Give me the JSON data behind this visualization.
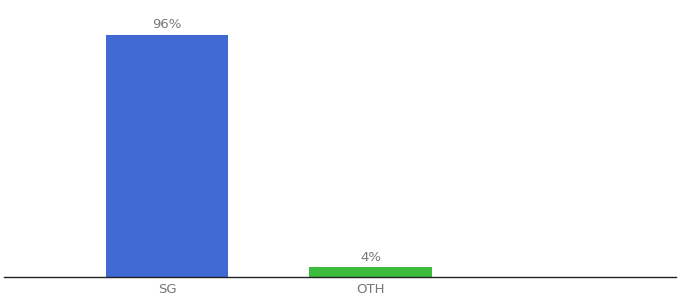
{
  "categories": [
    "SG",
    "OTH"
  ],
  "values": [
    96,
    4
  ],
  "bar_colors": [
    "#4169d4",
    "#3dbb3d"
  ],
  "label_texts": [
    "96%",
    "4%"
  ],
  "background_color": "#ffffff",
  "ylim": [
    0,
    108
  ],
  "bar_width": 0.6,
  "label_fontsize": 9.5,
  "tick_fontsize": 9.5,
  "label_color": "#777777",
  "tick_color": "#777777",
  "x_positions": [
    1,
    2
  ],
  "xlim": [
    0.2,
    3.5
  ]
}
